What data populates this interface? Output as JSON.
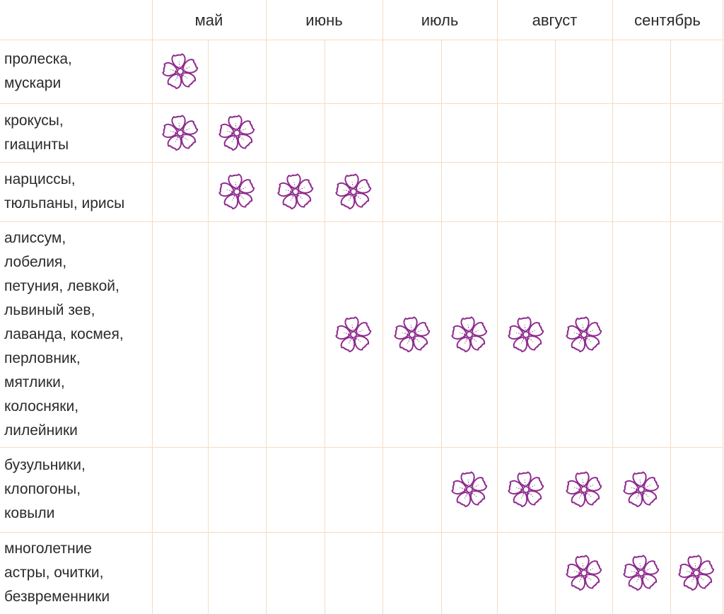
{
  "chart_data": {
    "type": "table",
    "columns": [
      "май",
      "июнь",
      "июль",
      "август",
      "сентябрь"
    ],
    "rows": [
      {
        "label": [
          "пролеска,",
          "мускари"
        ],
        "bloom": [
          1,
          0,
          0,
          0,
          0,
          0,
          0,
          0,
          0,
          0
        ]
      },
      {
        "label": [
          "крокусы,",
          "гиацинты"
        ],
        "bloom": [
          1,
          1,
          0,
          0,
          0,
          0,
          0,
          0,
          0,
          0
        ]
      },
      {
        "label": [
          "нарциссы,",
          "тюльпаны, ирисы"
        ],
        "bloom": [
          0,
          1,
          1,
          1,
          0,
          0,
          0,
          0,
          0,
          0
        ]
      },
      {
        "label": [
          "алиссум,",
          "лобелия,",
          "петуния, левкой,",
          "львиный зев,",
          "лаванда, космея,",
          "перловник,",
          "мятлики,",
          "колосняки,",
          "лилейники"
        ],
        "bloom": [
          0,
          0,
          0,
          1,
          1,
          1,
          1,
          1,
          0,
          0
        ]
      },
      {
        "label": [
          "бузульники,",
          "клопогоны,",
          "ковыли"
        ],
        "bloom": [
          0,
          0,
          0,
          0,
          0,
          1,
          1,
          1,
          1,
          0
        ]
      },
      {
        "label": [
          "многолетние",
          "астры, очитки,",
          "безвременники"
        ],
        "bloom": [
          0,
          0,
          0,
          0,
          0,
          0,
          0,
          1,
          1,
          1
        ]
      }
    ],
    "marker_icon": "flower-icon",
    "colors": {
      "grid": "#f5dcc0",
      "flower": "#8e2c8e",
      "text": "#2b2b2b"
    }
  }
}
